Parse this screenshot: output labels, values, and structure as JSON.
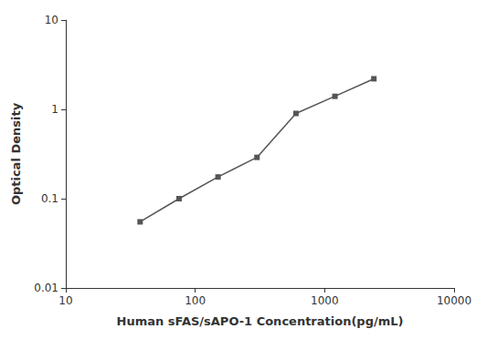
{
  "chart_data": {
    "type": "line",
    "x": [
      37.5,
      75,
      150,
      300,
      600,
      1200,
      2400
    ],
    "values": [
      0.055,
      0.1,
      0.175,
      0.29,
      0.9,
      1.4,
      2.2
    ],
    "xlabel": "Human sFAS/sAPO-1 Concentration(pg/mL)",
    "ylabel": "Optical Density",
    "xlim": [
      10,
      10000
    ],
    "ylim": [
      0.01,
      10
    ],
    "xticks": [
      10,
      100,
      1000,
      10000
    ],
    "yticks": [
      0.01,
      0.1,
      1,
      10
    ],
    "log": true,
    "grid": false,
    "color": "#555555",
    "marker": "square",
    "line_style": "solid"
  }
}
